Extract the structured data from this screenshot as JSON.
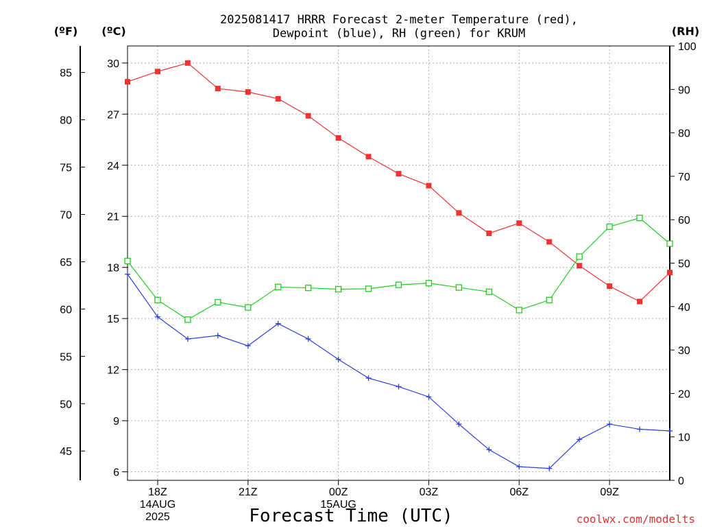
{
  "title_line1": "2025081417 HRRR Forecast 2-meter Temperature (red),",
  "title_line2": "Dewpoint (blue), RH (green) for KRUM",
  "unit_f": "(ºF)",
  "unit_c": "(ºC)",
  "unit_rh": "(RH)",
  "xlabel": "Forecast Time (UTC)",
  "credit": "coolwx.com/modelts",
  "colors": {
    "temperature": "#ee3333",
    "dewpoint": "#2b3fe0",
    "rh": "#22cc22",
    "grid": "#aaaaaa"
  },
  "chart_data": {
    "type": "line",
    "title": "2025081417 HRRR Forecast 2-meter Temperature (red), Dewpoint (blue), RH (green) for KRUM",
    "xlabel": "Forecast Time (UTC)",
    "x_range_hours": [
      17,
      35
    ],
    "x": [
      "17Z",
      "18Z",
      "19Z",
      "20Z",
      "21Z",
      "22Z",
      "23Z",
      "00Z",
      "01Z",
      "02Z",
      "03Z",
      "04Z",
      "05Z",
      "06Z",
      "07Z",
      "08Z",
      "09Z",
      "10Z",
      "11Z"
    ],
    "x_ticks": [
      {
        "hour": 18,
        "lines": [
          "18Z",
          "14AUG",
          "2025"
        ]
      },
      {
        "hour": 21,
        "lines": [
          "21Z"
        ]
      },
      {
        "hour": 24,
        "lines": [
          "00Z",
          "15AUG"
        ]
      },
      {
        "hour": 27,
        "lines": [
          "03Z"
        ]
      },
      {
        "hour": 30,
        "lines": [
          "06Z"
        ]
      },
      {
        "hour": 33,
        "lines": [
          "09Z"
        ]
      }
    ],
    "y_left_c": {
      "range": [
        5.5,
        31
      ],
      "ticks": [
        6,
        9,
        12,
        15,
        18,
        21,
        24,
        27,
        30
      ]
    },
    "y_left_f": {
      "range": [
        41.9,
        87.8
      ],
      "ticks": [
        45,
        50,
        55,
        60,
        65,
        70,
        75,
        80,
        85
      ]
    },
    "y_right_rh": {
      "range": [
        0,
        100
      ],
      "ticks": [
        0,
        10,
        20,
        30,
        40,
        50,
        60,
        70,
        80,
        90,
        100
      ]
    },
    "grid": true,
    "series": [
      {
        "name": "Temperature",
        "axis": "c",
        "marker": "filled-square",
        "values": [
          28.9,
          29.5,
          30.0,
          28.5,
          28.3,
          27.9,
          26.9,
          25.6,
          24.5,
          23.5,
          22.8,
          21.2,
          20.0,
          20.6,
          19.5,
          18.1,
          16.9,
          16.0,
          17.7
        ]
      },
      {
        "name": "Dewpoint",
        "axis": "c",
        "marker": "plus",
        "values": [
          17.6,
          15.1,
          13.8,
          14.0,
          13.4,
          14.7,
          13.8,
          12.6,
          11.5,
          11.0,
          10.4,
          8.8,
          7.3,
          6.3,
          6.2,
          7.9,
          8.8,
          8.5,
          8.4
        ]
      },
      {
        "name": "RH",
        "axis": "rh",
        "marker": "open-square",
        "values": [
          50.5,
          41.5,
          37.0,
          41.0,
          39.8,
          44.5,
          44.3,
          44.0,
          44.1,
          45.0,
          45.4,
          44.4,
          43.4,
          39.2,
          41.5,
          51.5,
          58.4,
          60.4,
          54.5
        ]
      }
    ]
  }
}
